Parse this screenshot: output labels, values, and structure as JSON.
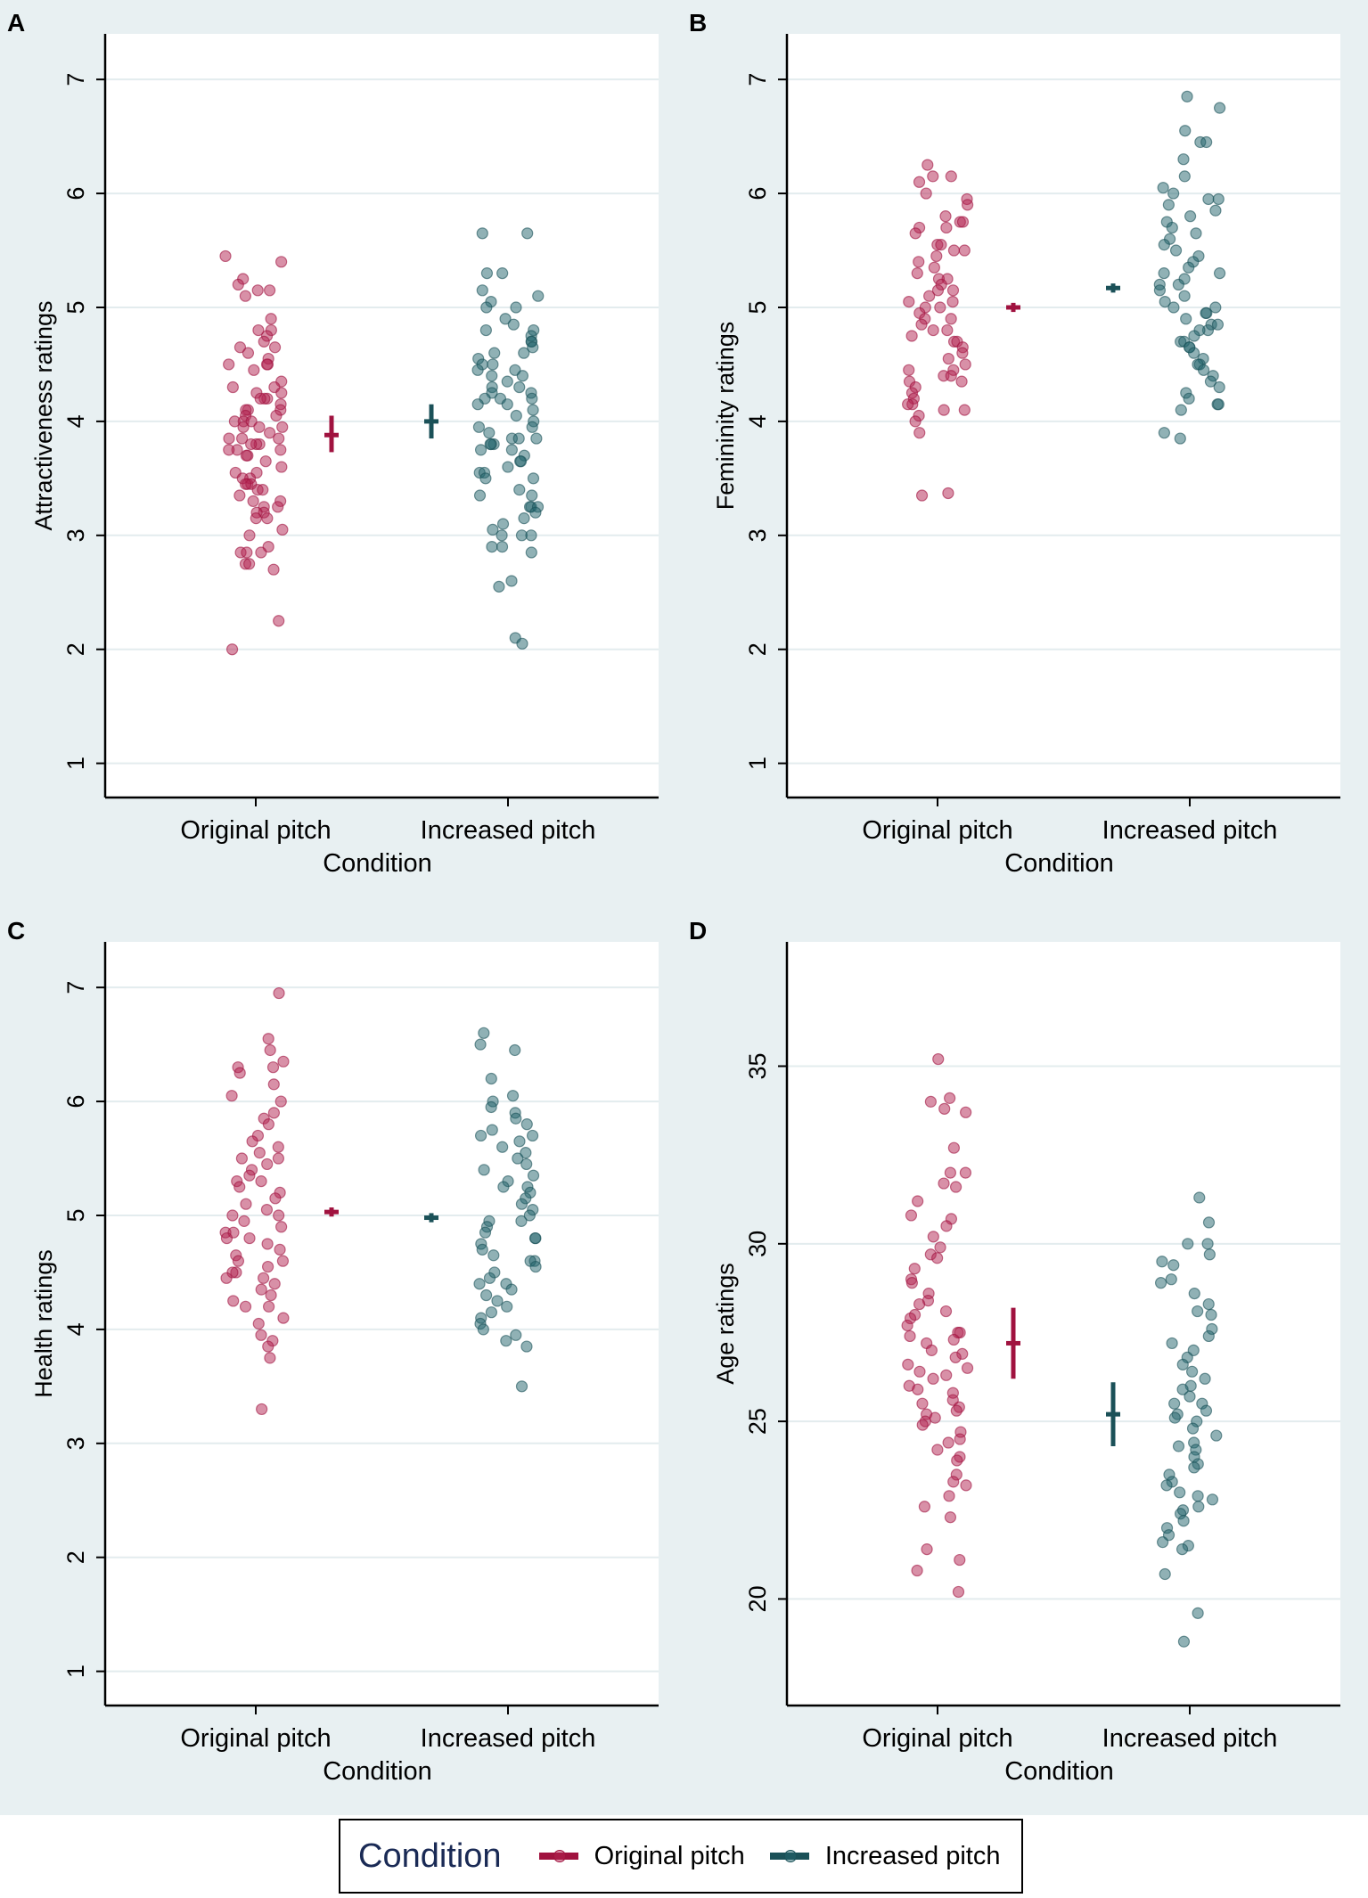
{
  "colors": {
    "original": "#a0123f",
    "increased": "#1b5158",
    "figure_bg": "#e8f0f2",
    "grid": "#e3ecee"
  },
  "legend": {
    "title": "Condition",
    "items": [
      "Original pitch",
      "Increased pitch"
    ]
  },
  "chart_data": [
    {
      "panel": "A",
      "type": "scatter",
      "ylabel": "Attractiveness ratings",
      "xlabel": "Condition",
      "categories": [
        "Original pitch",
        "Increased pitch"
      ],
      "yticks": [
        1,
        2,
        3,
        4,
        5,
        6,
        7
      ],
      "ylim": [
        0.7,
        7.4
      ],
      "grid": true,
      "series": [
        {
          "name": "Original pitch",
          "mean": 3.88,
          "ci": [
            3.73,
            4.05
          ],
          "values": [
            5.45,
            5.4,
            5.25,
            5.2,
            5.15,
            5.15,
            5.1,
            4.9,
            4.8,
            4.8,
            4.75,
            4.7,
            4.65,
            4.65,
            4.6,
            4.55,
            4.5,
            4.5,
            4.5,
            4.45,
            4.35,
            4.3,
            4.3,
            4.25,
            4.25,
            4.2,
            4.2,
            4.2,
            4.15,
            4.1,
            4.1,
            4.1,
            4.05,
            4.05,
            4.0,
            4.0,
            4.0,
            3.95,
            3.95,
            3.95,
            3.9,
            3.85,
            3.85,
            3.85,
            3.8,
            3.8,
            3.8,
            3.75,
            3.75,
            3.75,
            3.7,
            3.7,
            3.65,
            3.6,
            3.55,
            3.55,
            3.5,
            3.5,
            3.45,
            3.45,
            3.45,
            3.4,
            3.4,
            3.35,
            3.3,
            3.3,
            3.25,
            3.25,
            3.2,
            3.2,
            3.15,
            3.15,
            3.05,
            3.0,
            2.9,
            2.85,
            2.85,
            2.85,
            2.75,
            2.75,
            2.7,
            2.25,
            2.0
          ]
        },
        {
          "name": "Increased pitch",
          "mean": 4.0,
          "ci": [
            3.85,
            4.15
          ],
          "values": [
            5.65,
            5.65,
            5.3,
            5.3,
            5.15,
            5.1,
            5.05,
            5.0,
            5.0,
            4.9,
            4.85,
            4.8,
            4.8,
            4.75,
            4.7,
            4.7,
            4.65,
            4.6,
            4.6,
            4.55,
            4.5,
            4.5,
            4.45,
            4.45,
            4.4,
            4.4,
            4.35,
            4.3,
            4.3,
            4.25,
            4.25,
            4.2,
            4.2,
            4.2,
            4.15,
            4.15,
            4.1,
            4.05,
            4.0,
            3.95,
            3.95,
            3.9,
            3.85,
            3.85,
            3.85,
            3.8,
            3.8,
            3.8,
            3.75,
            3.75,
            3.7,
            3.65,
            3.65,
            3.6,
            3.55,
            3.55,
            3.5,
            3.5,
            3.4,
            3.35,
            3.35,
            3.25,
            3.25,
            3.25,
            3.2,
            3.15,
            3.1,
            3.05,
            3.0,
            3.0,
            3.0,
            2.9,
            2.9,
            2.85,
            2.6,
            2.55,
            2.1,
            2.05
          ]
        }
      ]
    },
    {
      "panel": "B",
      "type": "scatter",
      "ylabel": "Femininity ratings",
      "xlabel": "Condition",
      "categories": [
        "Original pitch",
        "Increased pitch"
      ],
      "yticks": [
        1,
        2,
        3,
        4,
        5,
        6,
        7
      ],
      "ylim": [
        0.7,
        7.4
      ],
      "grid": true,
      "series": [
        {
          "name": "Original pitch",
          "mean": 5.0,
          "ci": [
            4.96,
            5.04
          ],
          "values": [
            6.25,
            6.15,
            6.15,
            6.1,
            6.0,
            5.95,
            5.9,
            5.8,
            5.75,
            5.75,
            5.7,
            5.7,
            5.65,
            5.55,
            5.55,
            5.5,
            5.5,
            5.45,
            5.4,
            5.35,
            5.3,
            5.25,
            5.25,
            5.2,
            5.15,
            5.15,
            5.1,
            5.05,
            5.05,
            5.0,
            5.0,
            4.95,
            4.9,
            4.9,
            4.85,
            4.8,
            4.8,
            4.75,
            4.7,
            4.7,
            4.65,
            4.6,
            4.55,
            4.5,
            4.45,
            4.45,
            4.4,
            4.4,
            4.35,
            4.35,
            4.3,
            4.25,
            4.2,
            4.15,
            4.15,
            4.1,
            4.1,
            4.05,
            4.0,
            3.9,
            3.37,
            3.35
          ]
        },
        {
          "name": "Increased pitch",
          "mean": 5.17,
          "ci": [
            5.13,
            5.21
          ],
          "values": [
            6.85,
            6.75,
            6.55,
            6.45,
            6.45,
            6.3,
            6.15,
            6.05,
            6.0,
            5.95,
            5.95,
            5.9,
            5.85,
            5.8,
            5.75,
            5.7,
            5.65,
            5.6,
            5.55,
            5.5,
            5.45,
            5.4,
            5.35,
            5.3,
            5.3,
            5.25,
            5.2,
            5.2,
            5.15,
            5.1,
            5.05,
            5.0,
            5.0,
            4.95,
            4.95,
            4.9,
            4.85,
            4.85,
            4.8,
            4.8,
            4.75,
            4.7,
            4.7,
            4.65,
            4.65,
            4.6,
            4.55,
            4.5,
            4.5,
            4.45,
            4.4,
            4.35,
            4.3,
            4.25,
            4.2,
            4.15,
            4.15,
            4.1,
            3.9,
            3.85
          ]
        }
      ]
    },
    {
      "panel": "C",
      "type": "scatter",
      "ylabel": "Health ratings",
      "xlabel": "Condition",
      "categories": [
        "Original pitch",
        "Increased pitch"
      ],
      "yticks": [
        1,
        2,
        3,
        4,
        5,
        6,
        7
      ],
      "ylim": [
        0.7,
        7.4
      ],
      "grid": true,
      "series": [
        {
          "name": "Original pitch",
          "mean": 5.03,
          "ci": [
            4.99,
            5.07
          ],
          "values": [
            6.95,
            6.55,
            6.45,
            6.35,
            6.3,
            6.3,
            6.25,
            6.15,
            6.05,
            6.0,
            5.9,
            5.85,
            5.8,
            5.7,
            5.65,
            5.6,
            5.55,
            5.5,
            5.5,
            5.45,
            5.4,
            5.35,
            5.3,
            5.3,
            5.25,
            5.2,
            5.15,
            5.1,
            5.05,
            5.0,
            5.0,
            4.95,
            4.9,
            4.85,
            4.85,
            4.8,
            4.8,
            4.75,
            4.7,
            4.65,
            4.6,
            4.6,
            4.55,
            4.5,
            4.5,
            4.45,
            4.45,
            4.4,
            4.35,
            4.3,
            4.25,
            4.2,
            4.2,
            4.1,
            4.05,
            3.95,
            3.9,
            3.85,
            3.75,
            3.3
          ]
        },
        {
          "name": "Increased pitch",
          "mean": 4.98,
          "ci": [
            4.94,
            5.02
          ],
          "values": [
            6.6,
            6.5,
            6.45,
            6.2,
            6.05,
            6.0,
            5.95,
            5.9,
            5.85,
            5.8,
            5.75,
            5.7,
            5.7,
            5.65,
            5.6,
            5.55,
            5.5,
            5.45,
            5.4,
            5.35,
            5.3,
            5.25,
            5.25,
            5.2,
            5.15,
            5.1,
            5.05,
            5.0,
            4.95,
            4.95,
            4.9,
            4.85,
            4.8,
            4.8,
            4.75,
            4.7,
            4.65,
            4.6,
            4.6,
            4.55,
            4.5,
            4.45,
            4.4,
            4.4,
            4.35,
            4.3,
            4.25,
            4.2,
            4.15,
            4.1,
            4.05,
            4.0,
            3.95,
            3.9,
            3.85,
            3.5
          ]
        }
      ]
    },
    {
      "panel": "D",
      "type": "scatter",
      "ylabel": "Age ratings",
      "xlabel": "Condition",
      "categories": [
        "Original pitch",
        "Increased pitch"
      ],
      "yticks": [
        20,
        25,
        30,
        35
      ],
      "ylim": [
        17,
        38.5
      ],
      "grid": true,
      "series": [
        {
          "name": "Original pitch",
          "mean": 27.2,
          "ci": [
            26.2,
            28.2
          ],
          "values": [
            35.2,
            34.1,
            34.0,
            33.8,
            33.7,
            32.7,
            32.0,
            32.0,
            31.7,
            31.6,
            31.2,
            30.8,
            30.7,
            30.5,
            30.2,
            29.9,
            29.7,
            29.6,
            29.3,
            29.0,
            28.9,
            28.6,
            28.4,
            28.3,
            28.1,
            28.0,
            27.9,
            27.7,
            27.5,
            27.5,
            27.4,
            27.3,
            27.2,
            27.0,
            26.9,
            26.8,
            26.6,
            26.5,
            26.4,
            26.3,
            26.2,
            26.0,
            25.9,
            25.8,
            25.6,
            25.5,
            25.4,
            25.3,
            25.2,
            25.1,
            25.0,
            24.9,
            24.7,
            24.5,
            24.4,
            24.2,
            24.0,
            23.9,
            23.5,
            23.3,
            23.2,
            22.9,
            22.6,
            22.3,
            21.4,
            21.1,
            20.8,
            20.2
          ]
        },
        {
          "name": "Increased pitch",
          "mean": 25.2,
          "ci": [
            24.3,
            26.1
          ],
          "values": [
            31.3,
            30.6,
            30.0,
            30.0,
            29.7,
            29.5,
            29.4,
            29.0,
            28.9,
            28.6,
            28.3,
            28.1,
            28.0,
            27.6,
            27.4,
            27.2,
            27.0,
            26.8,
            26.6,
            26.4,
            26.2,
            26.0,
            25.9,
            25.7,
            25.5,
            25.5,
            25.3,
            25.2,
            25.1,
            25.0,
            24.8,
            24.6,
            24.4,
            24.3,
            24.2,
            24.0,
            23.8,
            23.7,
            23.5,
            23.3,
            23.2,
            23.0,
            22.9,
            22.8,
            22.6,
            22.5,
            22.4,
            22.2,
            22.0,
            21.8,
            21.6,
            21.5,
            21.4,
            20.7,
            19.6,
            18.8
          ]
        }
      ]
    }
  ]
}
